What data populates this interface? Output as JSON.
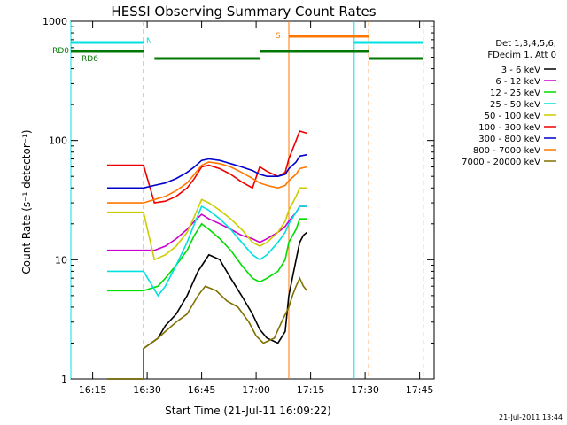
{
  "chart_data": {
    "type": "line",
    "title": "HESSI Observing Summary Count Rates",
    "xlabel": "Start Time (21-Jul-11 16:09:22)",
    "ylabel": "Count Rate (s⁻¹ detector⁻¹)",
    "ylog": true,
    "ylim": [
      1,
      1000
    ],
    "xlim": [
      "16:09",
      "17:49"
    ],
    "x_ticks": [
      "16:15",
      "16:30",
      "16:45",
      "17:00",
      "17:15",
      "17:30",
      "17:45"
    ],
    "y_ticks": [
      "1",
      "10",
      "100",
      "1000"
    ],
    "legend": {
      "position": "right",
      "header": [
        "Det 1,3,4,5,6,",
        "FDecim 1, Att 0"
      ]
    },
    "timestamp": "21-Jul-2011 13:44",
    "series": [
      {
        "name": "3 - 6 keV",
        "color": "#000000",
        "x": [
          "16:19",
          "16:29",
          "16:29",
          "16:33",
          "16:35",
          "16:38",
          "16:41",
          "16:44",
          "16:47",
          "16:50",
          "16:53",
          "16:56",
          "16:59",
          "17:01",
          "17:03",
          "17:06",
          "17:08",
          "17:09",
          "17:11",
          "17:12",
          "17:13",
          "17:14"
        ],
        "y": [
          1,
          1,
          1.8,
          2.2,
          2.8,
          3.5,
          5,
          8,
          11,
          10,
          7,
          5,
          3.5,
          2.6,
          2.2,
          2.0,
          2.5,
          5,
          10,
          14,
          16,
          17
        ]
      },
      {
        "name": "6 - 12 keV",
        "color": "#cc00cc",
        "x": [
          "16:19",
          "16:29",
          "16:32",
          "16:35",
          "16:38",
          "16:41",
          "16:43",
          "16:45",
          "16:47",
          "16:50",
          "16:53",
          "16:56",
          "16:59",
          "17:01",
          "17:03",
          "17:06",
          "17:08",
          "17:09",
          "17:11",
          "17:12",
          "17:14"
        ],
        "y": [
          12,
          12,
          12,
          13,
          15,
          18,
          21,
          24,
          22,
          20,
          18,
          16,
          15,
          14,
          15,
          17,
          19,
          21,
          25,
          28,
          28
        ]
      },
      {
        "name": "12 - 25 keV",
        "color": "#00dd00",
        "x": [
          "16:19",
          "16:29",
          "16:33",
          "16:35",
          "16:38",
          "16:41",
          "16:43",
          "16:45",
          "16:47",
          "16:50",
          "16:53",
          "16:56",
          "16:59",
          "17:01",
          "17:03",
          "17:06",
          "17:08",
          "17:09",
          "17:11",
          "17:12",
          "17:14"
        ],
        "y": [
          5.5,
          5.5,
          6,
          7,
          9,
          12,
          16,
          20,
          18,
          15,
          12,
          9,
          7,
          6.5,
          7,
          8,
          10,
          14,
          18,
          22,
          22
        ]
      },
      {
        "name": "25 - 50 keV",
        "color": "#00e0e0",
        "x": [
          "16:19",
          "16:29",
          "16:33",
          "16:35",
          "16:38",
          "16:41",
          "16:43",
          "16:45",
          "16:47",
          "16:50",
          "16:53",
          "16:56",
          "16:59",
          "17:01",
          "17:03",
          "17:06",
          "17:08",
          "17:09",
          "17:11",
          "17:12",
          "17:14"
        ],
        "y": [
          8,
          8,
          5,
          6,
          9,
          14,
          20,
          28,
          26,
          22,
          18,
          14,
          11,
          10,
          11,
          14,
          17,
          20,
          25,
          28,
          28
        ]
      },
      {
        "name": "50 - 100 keV",
        "color": "#cccc00",
        "x": [
          "16:19",
          "16:29",
          "16:32",
          "16:35",
          "16:38",
          "16:41",
          "16:43",
          "16:45",
          "16:47",
          "16:50",
          "16:53",
          "16:56",
          "16:59",
          "17:01",
          "17:03",
          "17:06",
          "17:08",
          "17:09",
          "17:11",
          "17:12",
          "17:14"
        ],
        "y": [
          25,
          25,
          10,
          11,
          13,
          17,
          23,
          32,
          30,
          26,
          22,
          18,
          14,
          13,
          14,
          17,
          21,
          26,
          34,
          40,
          40
        ]
      },
      {
        "name": "100 - 300 keV",
        "color": "#ee0000",
        "x": [
          "16:19",
          "16:29",
          "16:32",
          "16:35",
          "16:38",
          "16:41",
          "16:43",
          "16:45",
          "16:47",
          "16:50",
          "16:53",
          "16:56",
          "16:59",
          "17:01",
          "17:03",
          "17:06",
          "17:08",
          "17:09",
          "17:11",
          "17:12",
          "17:14"
        ],
        "y": [
          62,
          62,
          30,
          31,
          34,
          40,
          48,
          60,
          62,
          58,
          52,
          45,
          40,
          60,
          55,
          50,
          54,
          70,
          100,
          120,
          115
        ]
      },
      {
        "name": "300 - 800 keV",
        "color": "#0000cc",
        "x": [
          "16:19",
          "16:29",
          "16:32",
          "16:35",
          "16:38",
          "16:41",
          "16:43",
          "16:45",
          "16:47",
          "16:50",
          "16:53",
          "16:56",
          "16:59",
          "17:01",
          "17:03",
          "17:06",
          "17:08",
          "17:09",
          "17:11",
          "17:12",
          "17:14"
        ],
        "y": [
          40,
          40,
          42,
          44,
          48,
          54,
          60,
          68,
          70,
          68,
          64,
          60,
          56,
          52,
          50,
          50,
          52,
          58,
          66,
          74,
          76
        ]
      },
      {
        "name": "800 - 7000 keV",
        "color": "#ff7700",
        "x": [
          "16:19",
          "16:29",
          "16:32",
          "16:35",
          "16:38",
          "16:41",
          "16:43",
          "16:45",
          "16:47",
          "16:50",
          "16:53",
          "16:56",
          "16:59",
          "17:01",
          "17:03",
          "17:06",
          "17:08",
          "17:09",
          "17:11",
          "17:12",
          "17:14"
        ],
        "y": [
          30,
          30,
          32,
          34,
          38,
          44,
          52,
          62,
          66,
          64,
          60,
          54,
          48,
          44,
          42,
          40,
          42,
          46,
          52,
          58,
          60
        ]
      },
      {
        "name": "7000 - 20000 keV",
        "color": "#807000",
        "x": [
          "16:19",
          "16:29",
          "16:29",
          "16:33",
          "16:35",
          "16:38",
          "16:41",
          "16:44",
          "16:46",
          "16:49",
          "16:52",
          "16:55",
          "16:58",
          "17:00",
          "17:02",
          "17:05",
          "17:07",
          "17:09",
          "17:10",
          "17:11",
          "17:12",
          "17:13",
          "17:14"
        ],
        "y": [
          1,
          1,
          1.8,
          2.2,
          2.5,
          3,
          3.5,
          5,
          6,
          5.5,
          4.5,
          4,
          3,
          2.3,
          2,
          2.2,
          3,
          4,
          5,
          6,
          7,
          6,
          5.5
        ]
      }
    ],
    "annotations": {
      "rd_labels": [
        "RD0",
        "RD6"
      ],
      "night_label": "N",
      "saa_label": "S",
      "night_color": "#00e0e0",
      "saa_color": "#ff7700",
      "rd_color": "#007700"
    }
  }
}
